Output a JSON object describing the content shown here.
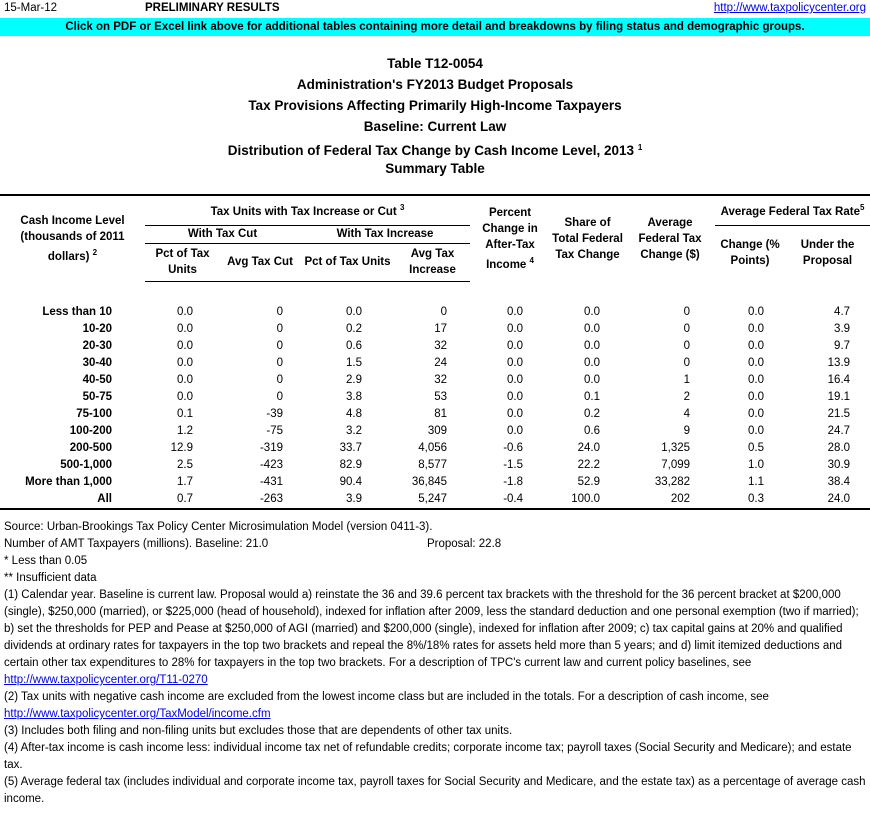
{
  "header": {
    "date": "15-Mar-12",
    "status": "PRELIMINARY RESULTS",
    "link": "http://www.taxpolicycenter.org"
  },
  "banner": "Click on PDF or Excel link above for additional tables containing more detail and breakdowns by filing status and demographic groups.",
  "titles": [
    {
      "text": "Table T12-0054"
    },
    {
      "text": "Administration's FY2013 Budget Proposals"
    },
    {
      "text": "Tax Provisions Affecting Primarily High-Income Taxpayers"
    },
    {
      "text": "Baseline: Current Law"
    },
    {
      "text": "Distribution of Federal Tax Change by Cash Income Level, 2013",
      "note": "1"
    },
    {
      "text": "Summary Table"
    }
  ],
  "table": {
    "headers": {
      "income": {
        "text": "Cash Income Level (thousands of 2011 dollars)",
        "note": "2"
      },
      "tax_units": {
        "text": "Tax Units with Tax Increase or Cut",
        "note": "3"
      },
      "with_cut": "With Tax Cut",
      "with_increase": "With Tax Increase",
      "cut_pct": "Pct of Tax Units",
      "cut_avg": "Avg Tax Cut",
      "inc_pct": "Pct of Tax Units",
      "inc_avg": "Avg Tax Increase",
      "pct_change": {
        "text": "Percent Change in After-Tax Income",
        "note": "4"
      },
      "share": "Share of Total Federal Tax Change",
      "avg_change": "Average Federal Tax Change ($)",
      "avg_rate": {
        "text": "Average Federal Tax Rate",
        "note": "5"
      },
      "rate_change": "Change (% Points)",
      "rate_under": "Under the Proposal"
    },
    "rows": [
      [
        "Less than 10",
        "0.0",
        "0",
        "0.0",
        "0",
        "0.0",
        "0.0",
        "0",
        "0.0",
        "4.7"
      ],
      [
        "10-20",
        "0.0",
        "0",
        "0.2",
        "17",
        "0.0",
        "0.0",
        "0",
        "0.0",
        "3.9"
      ],
      [
        "20-30",
        "0.0",
        "0",
        "0.6",
        "32",
        "0.0",
        "0.0",
        "0",
        "0.0",
        "9.7"
      ],
      [
        "30-40",
        "0.0",
        "0",
        "1.5",
        "24",
        "0.0",
        "0.0",
        "0",
        "0.0",
        "13.9"
      ],
      [
        "40-50",
        "0.0",
        "0",
        "2.9",
        "32",
        "0.0",
        "0.0",
        "1",
        "0.0",
        "16.4"
      ],
      [
        "50-75",
        "0.0",
        "0",
        "3.8",
        "53",
        "0.0",
        "0.1",
        "2",
        "0.0",
        "19.1"
      ],
      [
        "75-100",
        "0.1",
        "-39",
        "4.8",
        "81",
        "0.0",
        "0.2",
        "4",
        "0.0",
        "21.5"
      ],
      [
        "100-200",
        "1.2",
        "-75",
        "3.2",
        "309",
        "0.0",
        "0.6",
        "9",
        "0.0",
        "24.7"
      ],
      [
        "200-500",
        "12.9",
        "-319",
        "33.7",
        "4,056",
        "-0.6",
        "24.0",
        "1,325",
        "0.5",
        "28.0"
      ],
      [
        "500-1,000",
        "2.5",
        "-423",
        "82.9",
        "8,577",
        "-1.5",
        "22.2",
        "7,099",
        "1.0",
        "30.9"
      ],
      [
        "More than 1,000",
        "1.7",
        "-431",
        "90.4",
        "36,845",
        "-1.8",
        "52.9",
        "33,282",
        "1.1",
        "38.4"
      ],
      [
        "All",
        "0.7",
        "-263",
        "3.9",
        "5,247",
        "-0.4",
        "100.0",
        "202",
        "0.3",
        "24.0"
      ]
    ]
  },
  "notes": {
    "source": "Source: Urban-Brookings Tax Policy Center Microsimulation Model (version 0411-3).",
    "amt_baseline": "Number of AMT Taxpayers (millions).  Baseline: 21.0",
    "amt_proposal": "Proposal: 22.8",
    "less_than": "* Less than 0.05",
    "insufficient": "** Insufficient data",
    "n1": "(1) Calendar year. Baseline is current law. Proposal would a) reinstate the 36 and 39.6 percent tax brackets with the threshold for the 36 percent bracket at $200,000 (single), $250,000 (married), or $225,000 (head of household), indexed for inflation after 2009, less the standard deduction and one personal exemption (two if married); b) set the thresholds for PEP and Pease at $250,000 of AGI (married) and $200,000 (single), indexed for inflation after 2009; c) tax capital gains at 20% and qualified dividends at ordinary rates for taxpayers in the top two brackets and repeal the 8%/18% rates for assets held more than 5 years; and d) limit itemized deductions and certain other tax expenditures to 28% for taxpayers in the top two brackets. For a description of TPC's current law and current policy baselines, see",
    "n1_link": "http://www.taxpolicycenter.org/T11-0270",
    "n2": "(2) Tax units with negative cash income are excluded from the lowest income class but are included in the totals. For a description of cash income, see",
    "n2_link": "http://www.taxpolicycenter.org/TaxModel/income.cfm",
    "n3": "(3) Includes both filing and non-filing units but excludes those that are dependents of other tax units.",
    "n4": "(4) After-tax income is cash income less: individual income tax net of refundable credits; corporate income tax; payroll taxes (Social Security and Medicare); and estate tax.",
    "n5": "(5) Average federal tax (includes individual and corporate income tax, payroll taxes for Social Security and Medicare, and the estate tax) as a percentage of average cash income."
  }
}
